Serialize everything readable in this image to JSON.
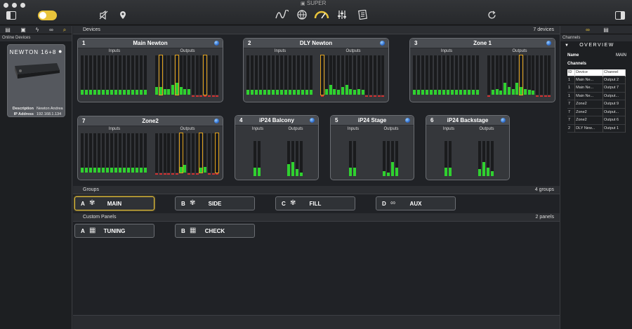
{
  "app": {
    "title": "SUPER"
  },
  "colors": {
    "meter": "#2fd12f",
    "highlight": "#e1a21d",
    "clip": "#d03030",
    "accent": "#e7c23a"
  },
  "toolbar": {
    "left_icons": [
      "sidebar-toggle-icon",
      "lock-toggle-icon",
      "mute-icon",
      "location-pin-icon"
    ],
    "center_icons": [
      "signal-wave-icon",
      "globe-icon",
      "speed-gauge-icon",
      "mixer-icon",
      "report-icon"
    ],
    "right_icons": [
      "refresh-icon",
      "panel-toggle-icon"
    ]
  },
  "left_panel": {
    "label": "Online Devices",
    "device": {
      "name": "NEWTON 16+8",
      "description_label": "Description",
      "description": "Newton Andrea",
      "ip_label": "IP Address",
      "ip": "192.168.1.134"
    }
  },
  "devices_section": {
    "title": "Devices",
    "count": "7 devices"
  },
  "devices": [
    {
      "num": "1",
      "name": "Main Newton",
      "inputs_label": "Inputs",
      "outputs_label": "Outputs",
      "inputs": [
        0.12,
        0.12,
        0.12,
        0.12,
        0.12,
        0.12,
        0.12,
        0.12,
        0.12,
        0.12,
        0.12,
        0.12,
        0.12,
        0.12,
        0.12,
        0.12
      ],
      "outputs": [
        0.2,
        0.2,
        0.15,
        0.15,
        0.25,
        0.3,
        0.2,
        0.15,
        0.15,
        0.0,
        0.0,
        0.0,
        0.0,
        0.0,
        0.0,
        0.0
      ],
      "highlight": [
        1,
        5,
        12
      ]
    },
    {
      "num": "2",
      "name": "DLY Newton",
      "inputs_label": "Inputs",
      "outputs_label": "Outputs",
      "inputs": [
        0.12,
        0.12,
        0.12,
        0.12,
        0.12,
        0.12,
        0.12,
        0.12,
        0.12,
        0.12,
        0.12,
        0.12,
        0.12,
        0.12,
        0.12,
        0.12
      ],
      "outputs": [
        0.0,
        0.15,
        0.25,
        0.15,
        0.12,
        0.2,
        0.25,
        0.15,
        0.12,
        0.15,
        0.12,
        0.0,
        0.0,
        0.0,
        0.0,
        0.0
      ],
      "highlight": [
        0
      ]
    },
    {
      "num": "3",
      "name": "Zone 1",
      "inputs_label": "Inputs",
      "outputs_label": "Outputs",
      "inputs": [
        0.12,
        0.12,
        0.12,
        0.12,
        0.12,
        0.12,
        0.12,
        0.12,
        0.12,
        0.12,
        0.12,
        0.12,
        0.12,
        0.12,
        0.12,
        0.12
      ],
      "outputs": [
        0.0,
        0.12,
        0.15,
        0.1,
        0.3,
        0.2,
        0.15,
        0.3,
        0.2,
        0.15,
        0.12,
        0.1,
        0.0,
        0.0,
        0.0,
        0.0
      ],
      "highlight": [
        8
      ]
    },
    {
      "num": "7",
      "name": "Zone2",
      "inputs_label": "Inputs",
      "outputs_label": "Outputs",
      "inputs": [
        0.12,
        0.12,
        0.12,
        0.12,
        0.12,
        0.12,
        0.12,
        0.12,
        0.12,
        0.12,
        0.12,
        0.12,
        0.12,
        0.12,
        0.12,
        0.12
      ],
      "outputs": [
        0.0,
        0.0,
        0.0,
        0.0,
        0.0,
        0.0,
        0.15,
        0.2,
        0.0,
        0.0,
        0.0,
        0.12,
        0.15,
        0.0,
        0.0,
        0.0
      ],
      "highlight": [
        6,
        11,
        15
      ]
    },
    {
      "num": "4",
      "name": "iP24  Balcony",
      "inputs_label": "Inputs",
      "outputs_label": "Outputs",
      "inputs": [
        0.25,
        0.25
      ],
      "outputs": [
        0.35,
        0.4,
        0.2,
        0.1
      ]
    },
    {
      "num": "5",
      "name": "iP24 Stage",
      "inputs_label": "Inputs",
      "outputs_label": "Outputs",
      "inputs": [
        0.25,
        0.25
      ],
      "outputs": [
        0.15,
        0.1,
        0.4,
        0.25
      ]
    },
    {
      "num": "6",
      "name": "iP24 Backstage",
      "inputs_label": "Inputs",
      "outputs_label": "Outputs",
      "inputs": [
        0.25,
        0.25
      ],
      "outputs": [
        0.2,
        0.4,
        0.25,
        0.15
      ]
    }
  ],
  "groups_section": {
    "title": "Groups",
    "count": "4 groups"
  },
  "groups": [
    {
      "letter": "A",
      "label": "MAIN",
      "icon": "speaker-group-icon",
      "selected": true
    },
    {
      "letter": "B",
      "label": "SIDE",
      "icon": "speaker-group-icon"
    },
    {
      "letter": "C",
      "label": "FILL",
      "icon": "speaker-group-icon"
    },
    {
      "letter": "D",
      "label": "AUX",
      "icon": "link-icon"
    }
  ],
  "panels_section": {
    "title": "Custom Panels",
    "count": "2 panels"
  },
  "panels": [
    {
      "letter": "A",
      "label": "TUNING",
      "icon": "panel-icon"
    },
    {
      "letter": "B",
      "label": "CHECK",
      "icon": "panel-icon"
    }
  ],
  "right_panel": {
    "label": "Channels",
    "overview": "OVERVIEW",
    "name_label": "Name",
    "name_value": "MAIN",
    "channels_label": "Channels",
    "table": {
      "headers": [
        "ID",
        "Device",
        "Channel"
      ],
      "rows": [
        [
          "1",
          "Main Ne...",
          "Output 2"
        ],
        [
          "1",
          "Main Ne...",
          "Output 7"
        ],
        [
          "1",
          "Main Ne...",
          "Output..."
        ],
        [
          "7",
          "Zone2",
          "Output 9"
        ],
        [
          "7",
          "Zone2",
          "Output..."
        ],
        [
          "7",
          "Zone2",
          "Output 6"
        ],
        [
          "2",
          "DLY New...",
          "Output 1"
        ]
      ]
    }
  }
}
